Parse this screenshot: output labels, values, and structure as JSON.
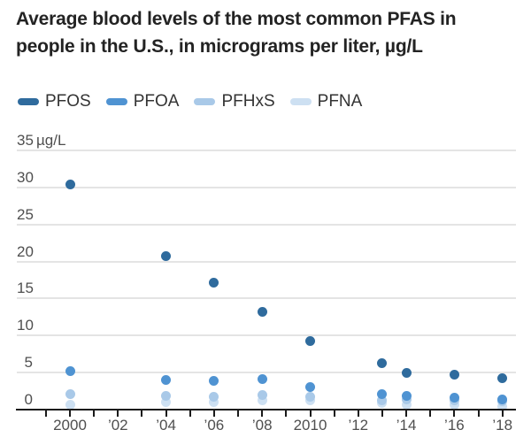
{
  "title": {
    "line1": "Average blood levels of the most common PFAS in",
    "line2": "people in the U.S., in micrograms per liter, µg/L"
  },
  "legend": {
    "position": "top",
    "items": [
      {
        "label": "PFOS",
        "color": "#2f6b9d"
      },
      {
        "label": "PFOA",
        "color": "#4f93d2"
      },
      {
        "label": "PFHxS",
        "color": "#a9c9e8"
      },
      {
        "label": "PFNA",
        "color": "#cde0f2"
      }
    ]
  },
  "colors": {
    "background": "#ffffff",
    "title_text": "#232323",
    "legend_text": "#333333",
    "tick_text": "#4f4f4f",
    "gridline": "#e4e4e4",
    "axis": "#1a1a1a"
  },
  "chart_data": {
    "type": "scatter",
    "title": "Average blood levels of the most common PFAS in people in the U.S., in micrograms per liter, µg/L",
    "xlabel": "",
    "ylabel": "µg/L",
    "ylim": [
      0,
      35
    ],
    "grid": true,
    "legend_position": "top",
    "y_ticks": [
      35,
      30,
      25,
      20,
      15,
      10,
      5,
      0
    ],
    "y_unit_label_on_max": "µg/L",
    "x": [
      2000,
      2004,
      2006,
      2008,
      2010,
      2013,
      2014,
      2016,
      2018
    ],
    "series": [
      {
        "name": "PFOS",
        "color": "#2f6b9d",
        "values": [
          30.4,
          20.7,
          17.1,
          13.2,
          9.3,
          6.3,
          5.0,
          4.7,
          4.3
        ]
      },
      {
        "name": "PFOA",
        "color": "#4f93d2",
        "values": [
          5.2,
          4.0,
          3.9,
          4.1,
          3.1,
          2.1,
          1.9,
          1.6,
          1.4
        ]
      },
      {
        "name": "PFHxS",
        "color": "#a9c9e8",
        "values": [
          2.1,
          1.9,
          1.7,
          2.0,
          1.7,
          1.3,
          1.4,
          1.2,
          1.1
        ]
      },
      {
        "name": "PFNA",
        "color": "#cde0f2",
        "values": [
          0.6,
          1.0,
          1.0,
          1.2,
          1.3,
          0.9,
          0.7,
          0.6,
          0.4
        ]
      }
    ],
    "x_axis": {
      "tick_years": [
        1999,
        2000,
        2001,
        2002,
        2003,
        2004,
        2005,
        2006,
        2007,
        2008,
        2009,
        2010,
        2011,
        2012,
        2013,
        2014,
        2015,
        2016,
        2017,
        2018
      ],
      "labels": [
        {
          "year": 2000,
          "text": "2000"
        },
        {
          "year": 2002,
          "text": "’02"
        },
        {
          "year": 2004,
          "text": "’04"
        },
        {
          "year": 2006,
          "text": "’06"
        },
        {
          "year": 2008,
          "text": "’08"
        },
        {
          "year": 2010,
          "text": "2010"
        },
        {
          "year": 2012,
          "text": "’12"
        },
        {
          "year": 2014,
          "text": "’14"
        },
        {
          "year": 2016,
          "text": "’16"
        },
        {
          "year": 2018,
          "text": "’18"
        }
      ]
    }
  }
}
